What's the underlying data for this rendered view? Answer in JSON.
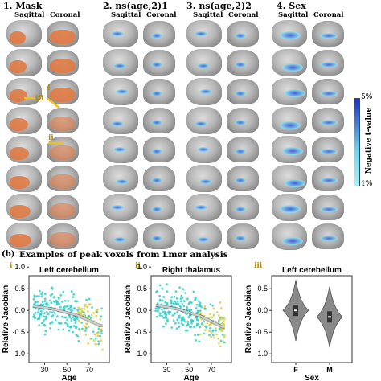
{
  "panel_a": {
    "columns": [
      {
        "title": "1. Mask",
        "sub1": "Sagittal",
        "sub2": "Coronal"
      },
      {
        "title": "2. ns(age,2)1",
        "sub1": "Sagittal",
        "sub2": "Coronal"
      },
      {
        "title": "3. ns(age,2)2",
        "sub1": "Sagittal",
        "sub2": "Coronal"
      },
      {
        "title": "4. Sex",
        "sub1": "Sagittal",
        "sub2": "Coronal"
      }
    ],
    "markers": [
      "i",
      "iii",
      "ii"
    ],
    "colorbar": {
      "label": "Negative t-value",
      "top": "5%",
      "bottom": "1%"
    },
    "colors": {
      "mask": "#e07a44",
      "highlight_dark": "#2a50d8",
      "highlight_light": "#8ee6f2",
      "arrow": "#f0c020"
    }
  },
  "panel_b": {
    "label": "(b)",
    "title": "Examples of peak voxels from Lmer analysis"
  },
  "chart_data": [
    {
      "type": "scatter",
      "panel": "i",
      "title": "Left cerebellum",
      "xlabel": "Age",
      "ylabel": "Relative Jacobian",
      "xticks": [
        30,
        50,
        70
      ],
      "yticks": [
        -1.0,
        -0.5,
        0.0,
        0.5,
        1.0
      ],
      "xlim": [
        16,
        88
      ],
      "ylim": [
        -1.2,
        0.8
      ],
      "fit": {
        "x": [
          20,
          40,
          60,
          80
        ],
        "y": [
          0.1,
          0.02,
          -0.12,
          -0.35
        ]
      },
      "colors": {
        "points_young": "#2fd0c8",
        "points_old": "#d8d040",
        "fit": "#cfcfcf"
      }
    },
    {
      "type": "scatter",
      "panel": "ii",
      "title": "Right thalamus",
      "xlabel": "Age",
      "ylabel": "Relative Jacobian",
      "xticks": [
        30,
        50,
        70
      ],
      "yticks": [
        -1.0,
        -0.5,
        0.0,
        0.5,
        1.0
      ],
      "xlim": [
        16,
        88
      ],
      "ylim": [
        -1.2,
        0.8
      ],
      "fit": {
        "x": [
          20,
          40,
          60,
          80
        ],
        "y": [
          0.12,
          0.03,
          -0.13,
          -0.38
        ]
      },
      "colors": {
        "points_young": "#2fd0c8",
        "points_old": "#d8d040",
        "fit": "#cfcfcf"
      }
    },
    {
      "type": "violin",
      "panel": "iii",
      "title": "Left cerebellum",
      "xlabel": "Sex",
      "ylabel": "Relative Jacobian",
      "categories": [
        "F",
        "M"
      ],
      "medians": [
        0.0,
        -0.15
      ],
      "yticks": [
        -1.0,
        -0.5,
        0.0,
        0.5
      ],
      "ylim": [
        -1.2,
        0.8
      ]
    }
  ]
}
